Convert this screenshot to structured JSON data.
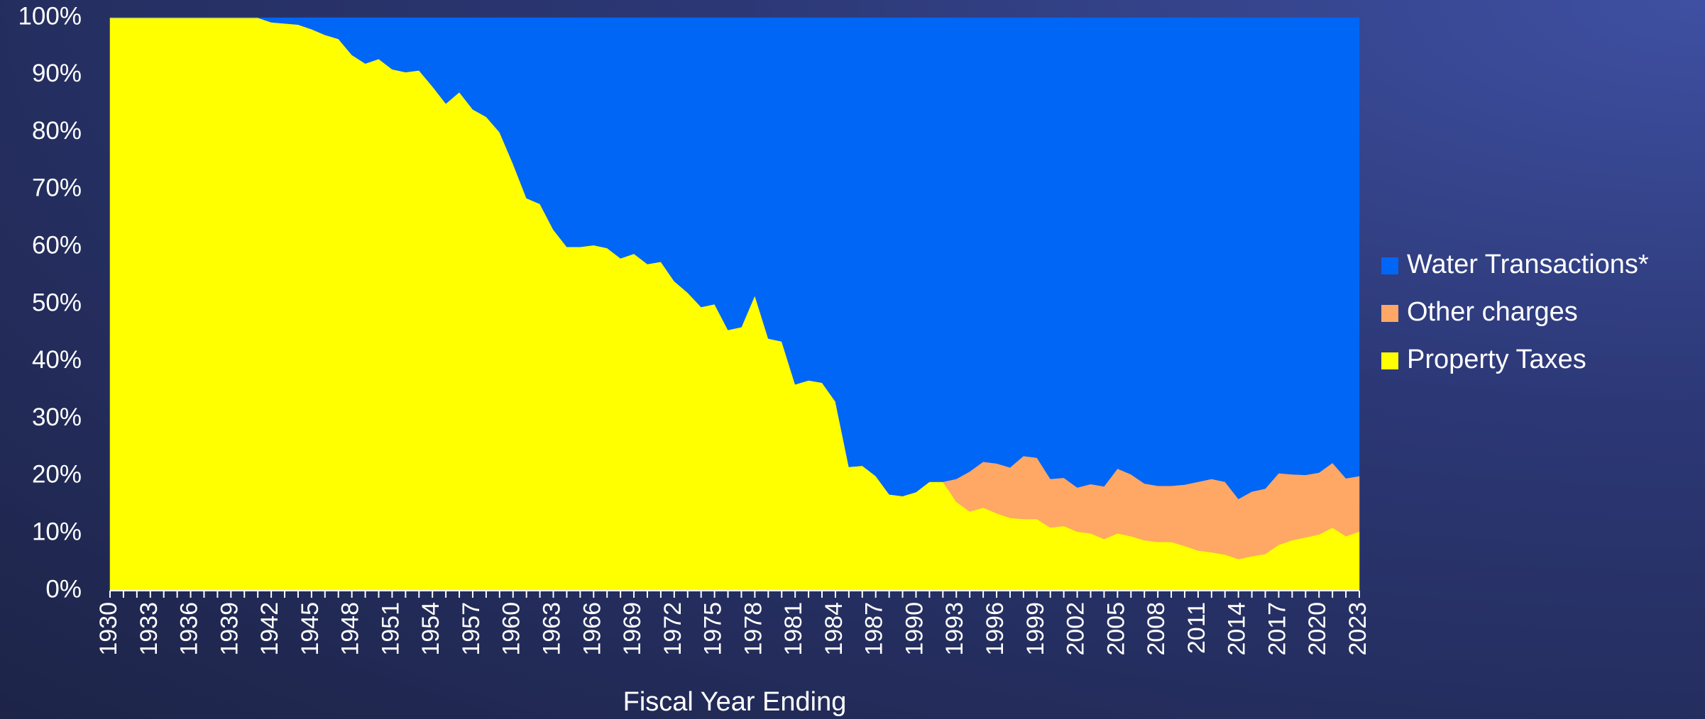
{
  "chart_data": {
    "type": "stacked_area",
    "x_label": "Fiscal Year Ending",
    "x": [
      1930,
      1931,
      1932,
      1933,
      1934,
      1935,
      1936,
      1937,
      1938,
      1939,
      1940,
      1941,
      1942,
      1943,
      1944,
      1945,
      1946,
      1947,
      1948,
      1949,
      1950,
      1951,
      1952,
      1953,
      1954,
      1955,
      1956,
      1957,
      1958,
      1959,
      1960,
      1961,
      1962,
      1963,
      1964,
      1965,
      1966,
      1967,
      1968,
      1969,
      1970,
      1971,
      1972,
      1973,
      1974,
      1975,
      1976,
      1977,
      1978,
      1979,
      1980,
      1981,
      1982,
      1983,
      1984,
      1985,
      1986,
      1987,
      1988,
      1989,
      1990,
      1991,
      1992,
      1993,
      1994,
      1995,
      1996,
      1997,
      1998,
      1999,
      2000,
      2001,
      2002,
      2003,
      2004,
      2005,
      2006,
      2007,
      2008,
      2009,
      2010,
      2011,
      2012,
      2013,
      2014,
      2015,
      2016,
      2017,
      2018,
      2019,
      2020,
      2021,
      2022,
      2023
    ],
    "series": [
      {
        "name": "Water Transactions*",
        "color": "#0066f5",
        "values": [
          0,
          0,
          0,
          0,
          0,
          0,
          0,
          0,
          0,
          0,
          0,
          0,
          0.8,
          1,
          1.2,
          2,
          3,
          3.7,
          6.5,
          8,
          7.2,
          9,
          9.5,
          9.2,
          12,
          15,
          13,
          16,
          17.3,
          20,
          25.5,
          31.5,
          32.5,
          37,
          40,
          40,
          39.7,
          40.2,
          42,
          41.2,
          43,
          42.6,
          46,
          48,
          50.5,
          50,
          54.5,
          54,
          48.5,
          56,
          56.5,
          64,
          63.3,
          63.7,
          67,
          78.4,
          78.2,
          80,
          83.2,
          83.5,
          82.8,
          81,
          81,
          80.5,
          79.2,
          77.5,
          77.8,
          78.5,
          76.5,
          76.8,
          80.5,
          80.3,
          82,
          81.4,
          81.8,
          78.7,
          79.7,
          81.3,
          81.7,
          81.7,
          81.5,
          81,
          80.5,
          81,
          84,
          82.7,
          82.2,
          79.5,
          79.7,
          79.8,
          79.4,
          77.7,
          80.4,
          80
        ]
      },
      {
        "name": "Other charges",
        "color": "#ffa764",
        "values": [
          0,
          0,
          0,
          0,
          0,
          0,
          0,
          0,
          0,
          0,
          0,
          0,
          0,
          0,
          0,
          0,
          0,
          0,
          0,
          0,
          0,
          0,
          0,
          0,
          0,
          0,
          0,
          0,
          0,
          0,
          0,
          0,
          0,
          0,
          0,
          0,
          0,
          0,
          0,
          0,
          0,
          0,
          0,
          0,
          0,
          0,
          0,
          0,
          0,
          0,
          0,
          0,
          0,
          0,
          0,
          0,
          0,
          0,
          0,
          0,
          0,
          0,
          0,
          4,
          7,
          8,
          8.7,
          8.8,
          11,
          10.7,
          8.5,
          8.4,
          7.7,
          8.6,
          9.2,
          11.3,
          10.8,
          9.9,
          9.8,
          9.8,
          10.7,
          12,
          12.8,
          12.7,
          10.5,
          11.3,
          11.4,
          12.5,
          11.5,
          10.9,
          10.8,
          11.3,
          10.1,
          9.7
        ]
      },
      {
        "name": "Property Taxes",
        "color": "#ffff00",
        "values": [
          100,
          100,
          100,
          100,
          100,
          100,
          100,
          100,
          100,
          100,
          100,
          100,
          99.2,
          99,
          98.8,
          98,
          97,
          96.3,
          93.5,
          92,
          92.8,
          91,
          90.5,
          90.8,
          88,
          85,
          87,
          84,
          82.7,
          80,
          74.5,
          68.5,
          67.5,
          63,
          60,
          60,
          60.3,
          59.8,
          58,
          58.8,
          57,
          57.4,
          54,
          52,
          49.5,
          50,
          45.5,
          46,
          51.5,
          44,
          43.5,
          36,
          36.7,
          36.3,
          33,
          21.6,
          21.8,
          20,
          16.8,
          16.5,
          17.2,
          19,
          19,
          15.5,
          13.8,
          14.5,
          13.5,
          12.7,
          12.5,
          12.5,
          11,
          11.3,
          10.3,
          10,
          9,
          10,
          9.5,
          8.8,
          8.5,
          8.5,
          7.8,
          7,
          6.7,
          6.3,
          5.5,
          6,
          6.4,
          8,
          8.8,
          9.3,
          9.8,
          11,
          9.5,
          10.3
        ]
      }
    ],
    "xlim": [
      1930,
      2023
    ],
    "xticks": [
      1930,
      1933,
      1936,
      1939,
      1942,
      1945,
      1948,
      1951,
      1954,
      1957,
      1960,
      1963,
      1966,
      1969,
      1972,
      1975,
      1978,
      1981,
      1984,
      1987,
      1990,
      1993,
      1996,
      1999,
      2002,
      2005,
      2008,
      2011,
      2014,
      2017,
      2020,
      2023
    ],
    "ylim": [
      0,
      100
    ],
    "yticks": [
      {
        "value": 0,
        "label": "0%"
      },
      {
        "value": 10,
        "label": "10%"
      },
      {
        "value": 20,
        "label": "20%"
      },
      {
        "value": 30,
        "label": "30%"
      },
      {
        "value": 40,
        "label": "40%"
      },
      {
        "value": 50,
        "label": "50%"
      },
      {
        "value": 60,
        "label": "60%"
      },
      {
        "value": 70,
        "label": "70%"
      },
      {
        "value": 80,
        "label": "80%"
      },
      {
        "value": 90,
        "label": "90%"
      },
      {
        "value": 100,
        "label": "100%"
      }
    ],
    "legend": "right"
  }
}
